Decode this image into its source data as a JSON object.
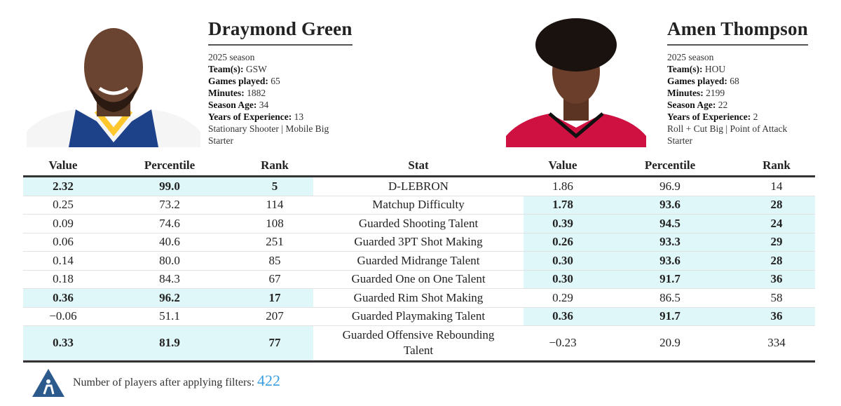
{
  "players": [
    {
      "name": "Draymond Green",
      "season": "2025 season",
      "fields": [
        {
          "label": "Team(s):",
          "value": "GSW"
        },
        {
          "label": "Games played:",
          "value": "65"
        },
        {
          "label": "Minutes:",
          "value": "1882"
        },
        {
          "label": "Season Age:",
          "value": "34"
        },
        {
          "label": "Years of Experience:",
          "value": "13"
        }
      ],
      "archetype": "Stationary Shooter | Mobile Big",
      "role": "Starter"
    },
    {
      "name": "Amen Thompson",
      "season": "2025 season",
      "fields": [
        {
          "label": "Team(s):",
          "value": "HOU"
        },
        {
          "label": "Games played:",
          "value": "68"
        },
        {
          "label": "Minutes:",
          "value": "2199"
        },
        {
          "label": "Season Age:",
          "value": "22"
        },
        {
          "label": "Years of Experience:",
          "value": "2"
        }
      ],
      "archetype": "Roll + Cut Big | Point of Attack",
      "role": "Starter"
    }
  ],
  "table": {
    "columns": [
      "Value",
      "Percentile",
      "Rank",
      "Stat",
      "Value",
      "Percentile",
      "Rank"
    ],
    "rows": [
      {
        "left": [
          "2.32",
          "99.0",
          "5"
        ],
        "stat": "D-LEBRON",
        "right": [
          "1.86",
          "96.9",
          "14"
        ],
        "better": "left"
      },
      {
        "left": [
          "0.25",
          "73.2",
          "114"
        ],
        "stat": "Matchup Difficulty",
        "right": [
          "1.78",
          "93.6",
          "28"
        ],
        "better": "right"
      },
      {
        "left": [
          "0.09",
          "74.6",
          "108"
        ],
        "stat": "Guarded Shooting Talent",
        "right": [
          "0.39",
          "94.5",
          "24"
        ],
        "better": "right"
      },
      {
        "left": [
          "0.06",
          "40.6",
          "251"
        ],
        "stat": "Guarded 3PT Shot Making",
        "right": [
          "0.26",
          "93.3",
          "29"
        ],
        "better": "right"
      },
      {
        "left": [
          "0.14",
          "80.0",
          "85"
        ],
        "stat": "Guarded Midrange Talent",
        "right": [
          "0.30",
          "93.6",
          "28"
        ],
        "better": "right"
      },
      {
        "left": [
          "0.18",
          "84.3",
          "67"
        ],
        "stat": "Guarded One on One Talent",
        "right": [
          "0.30",
          "91.7",
          "36"
        ],
        "better": "right"
      },
      {
        "left": [
          "0.36",
          "96.2",
          "17"
        ],
        "stat": "Guarded Rim Shot Making",
        "right": [
          "0.29",
          "86.5",
          "58"
        ],
        "better": "left"
      },
      {
        "left": [
          "−0.06",
          "51.1",
          "207"
        ],
        "stat": "Guarded Playmaking Talent",
        "right": [
          "0.36",
          "91.7",
          "36"
        ],
        "better": "right"
      },
      {
        "left": [
          "0.33",
          "81.9",
          "77"
        ],
        "stat": "Guarded Offensive Rebounding Talent",
        "right": [
          "−0.23",
          "20.9",
          "334"
        ],
        "better": "left"
      }
    ]
  },
  "footer": {
    "text": "Number of players after applying filters:",
    "count": "422"
  }
}
